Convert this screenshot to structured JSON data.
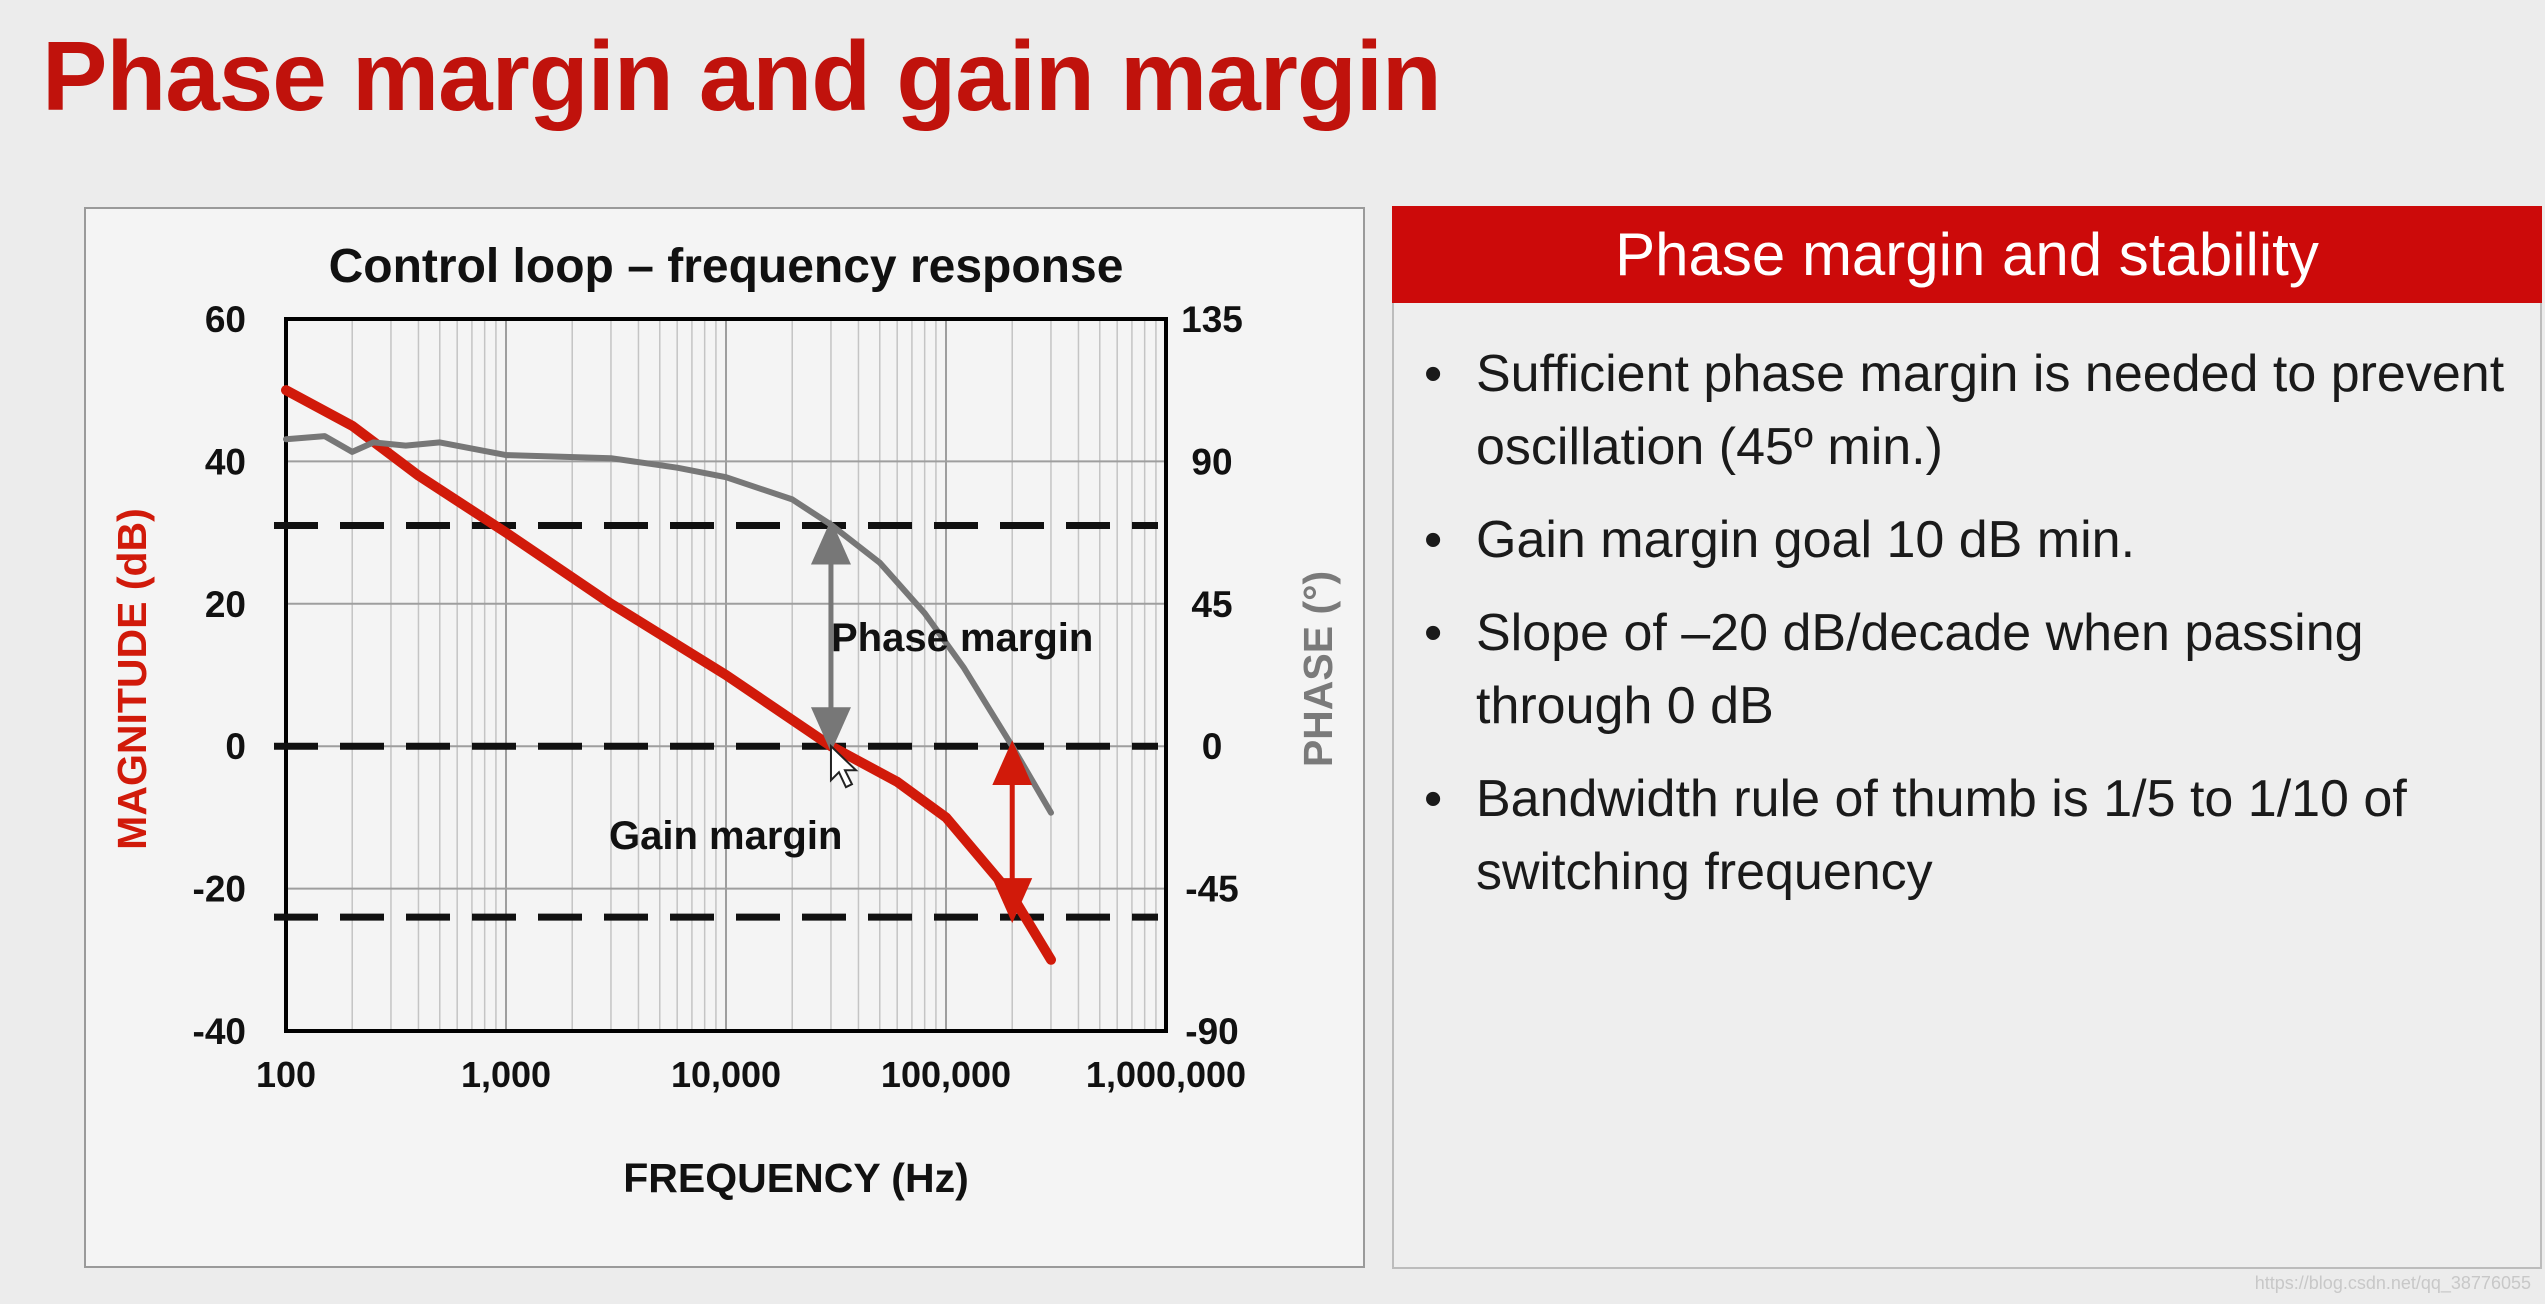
{
  "slide": {
    "title": "Phase margin and gain margin",
    "watermark": "https://blog.csdn.net/qq_38776055"
  },
  "panel": {
    "header": "Phase margin and stability",
    "bullet_char": "•",
    "bullets": [
      "Sufficient phase margin is needed to prevent oscillation (45º min.)",
      "Gain margin goal 10 dB min.",
      "Slope of –20 dB/decade when passing through 0 dB",
      "Bandwidth rule of thumb is 1/5 to 1/10 of switching frequency"
    ]
  },
  "colors": {
    "accent": "#cc0a0a",
    "magnitude": "#d11a0a",
    "phase": "#777777",
    "dashed": "#111111"
  },
  "chart_data": {
    "type": "line",
    "title": "Control loop – frequency response",
    "xlabel": "FREQUENCY (Hz)",
    "ylabel_left": "MAGNITUDE (dB)",
    "ylabel_right": "PHASE (°)",
    "xscale": "log",
    "xlim": [
      100,
      1000000
    ],
    "ylim_left": [
      -40,
      60
    ],
    "ylim_right": [
      -90,
      135
    ],
    "x_ticks": [
      100,
      1000,
      10000,
      100000,
      1000000
    ],
    "x_tick_labels": [
      "100",
      "1,000",
      "10,000",
      "100,000",
      "1,000,000"
    ],
    "y_ticks_left": [
      60,
      40,
      20,
      0,
      -20,
      -40
    ],
    "y_ticks_right": [
      135,
      90,
      45,
      0,
      -45,
      -90
    ],
    "grid": true,
    "series": [
      {
        "name": "Magnitude",
        "axis": "left",
        "x": [
          100,
          200,
          400,
          1000,
          3000,
          10000,
          30000,
          60000,
          100000,
          200000,
          300000
        ],
        "y": [
          50,
          45,
          38,
          30,
          20,
          10,
          0,
          -5,
          -10,
          -21,
          -30
        ]
      },
      {
        "name": "Phase",
        "axis": "right",
        "x": [
          100,
          150,
          200,
          250,
          350,
          500,
          1000,
          3000,
          6000,
          10000,
          20000,
          30000,
          50000,
          80000,
          120000,
          200000,
          300000
        ],
        "y": [
          97,
          98,
          93,
          96,
          95,
          96,
          92,
          91,
          88,
          85,
          78,
          70,
          58,
          42,
          25,
          0,
          -21
        ]
      }
    ],
    "reference_lines": [
      {
        "name": "phase-margin-level",
        "axis": "left",
        "y": 31
      },
      {
        "name": "zero-db",
        "axis": "left",
        "y": 0
      },
      {
        "name": "gain-margin-level",
        "axis": "left",
        "y": -24
      }
    ],
    "annotations": [
      {
        "name": "phase-margin",
        "text": "Phase margin",
        "x": 30000,
        "y_from": 0,
        "y_to": 31
      },
      {
        "name": "gain-margin",
        "text": "Gain margin",
        "x": 200000,
        "y_from": 0,
        "y_to": -24
      }
    ]
  }
}
